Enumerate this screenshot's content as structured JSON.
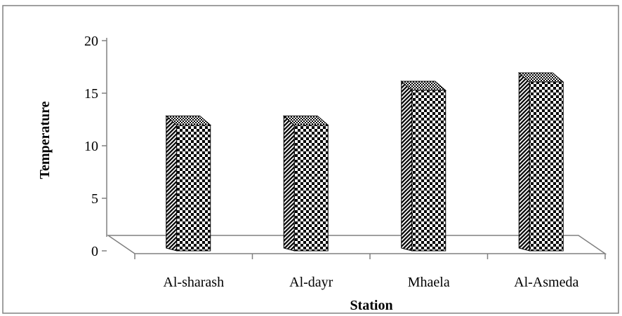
{
  "chart_data": {
    "type": "bar",
    "title": "",
    "xlabel": "Station",
    "ylabel": "Temperature",
    "categories": [
      "Al-sharash",
      "Al-dayr",
      "Mhaela",
      "Al-Asmeda"
    ],
    "values": [
      12.1,
      12.1,
      15.4,
      16.2
    ],
    "ylim": [
      0,
      20
    ],
    "yticks": [
      "0",
      "5",
      "10",
      "15",
      "20"
    ],
    "grid": false,
    "legend": "none",
    "style": "3d-column-checkered"
  }
}
